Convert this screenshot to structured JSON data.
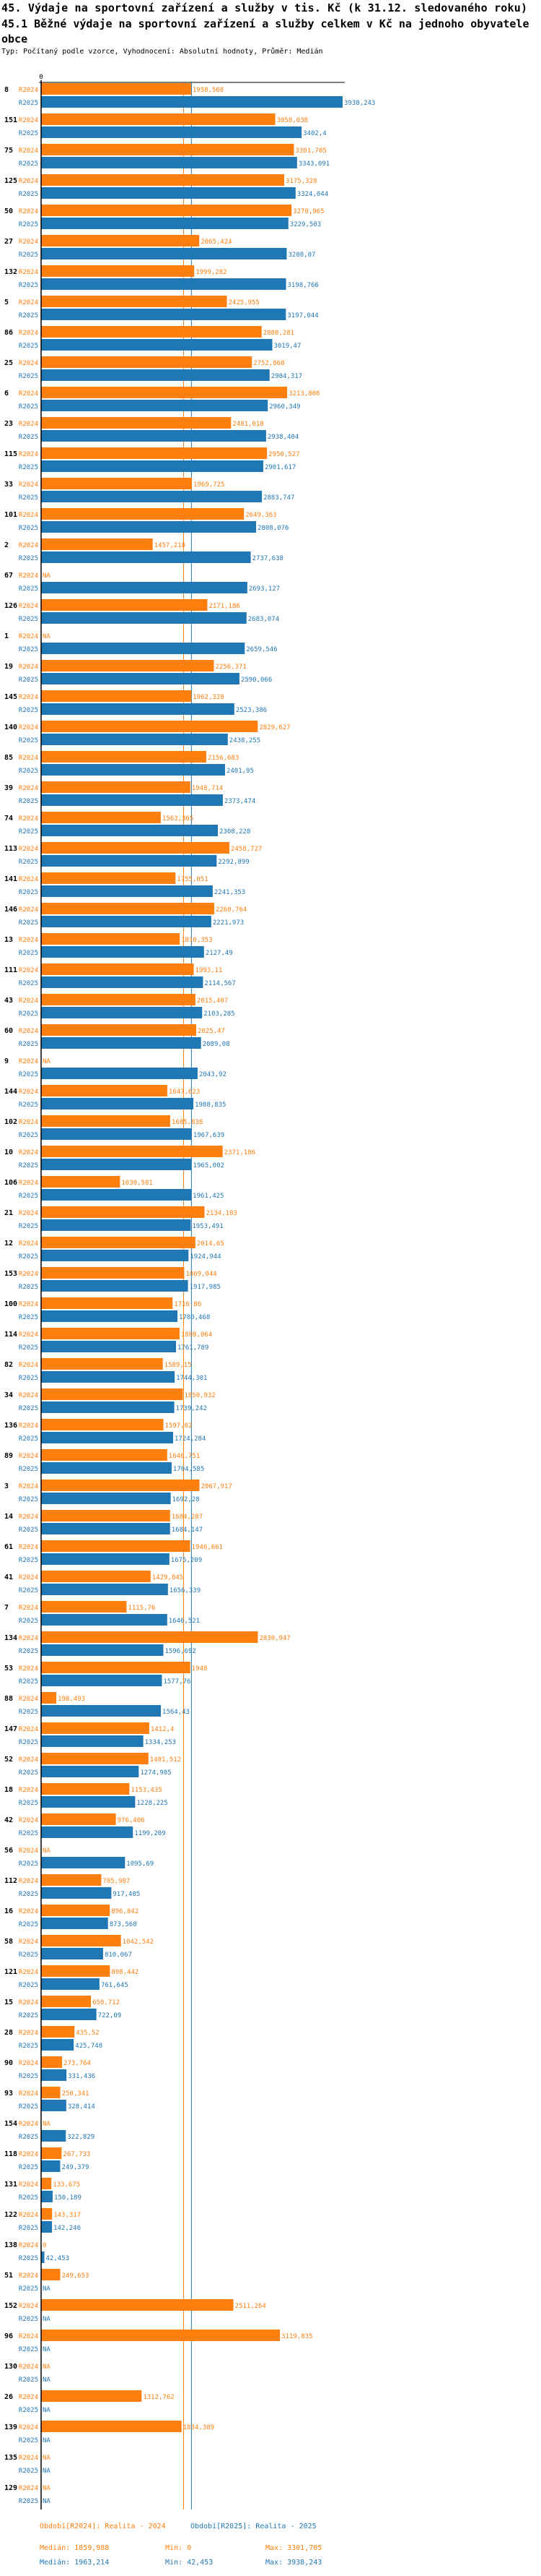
{
  "title": "45. Výdaje na sportovní zařízení a služby v tis. Kč (k 31.12. sledovaného roku)",
  "subtitle": "45.1 Běžné výdaje na sportovní zařízení a služby celkem v Kč na jednoho obyvatele obce",
  "type_line": "Typ: Počítaný podle vzorce, Vyhodnocení: Absolutní hodnoty, Průměr: Medián",
  "colors": {
    "R2024": "#ff7f0e",
    "R2025": "#1f77b4"
  },
  "chart_data": {
    "type": "bar",
    "orientation": "horizontal",
    "title": "45.1 Běžné výdaje na sportovní zařízení a služby celkem v Kč na jednoho obyvatele obce",
    "xlabel": "",
    "ylabel": "",
    "xlim": [
      0,
      3938.243
    ],
    "x_tick_labels": [
      "0"
    ],
    "series_names": [
      "R2024",
      "R2025"
    ],
    "categories": [
      "8",
      "151",
      "75",
      "125",
      "50",
      "27",
      "132",
      "5",
      "86",
      "25",
      "6",
      "23",
      "115",
      "33",
      "101",
      "2",
      "67",
      "126",
      "1",
      "19",
      "145",
      "140",
      "85",
      "39",
      "74",
      "113",
      "141",
      "146",
      "13",
      "111",
      "43",
      "60",
      "9",
      "144",
      "102",
      "10",
      "106",
      "21",
      "12",
      "153",
      "100",
      "114",
      "82",
      "34",
      "136",
      "89",
      "3",
      "14",
      "61",
      "41",
      "7",
      "134",
      "53",
      "88",
      "147",
      "52",
      "18",
      "42",
      "56",
      "112",
      "16",
      "58",
      "121",
      "15",
      "28",
      "90",
      "93",
      "154",
      "118",
      "131",
      "122",
      "138",
      "51",
      "152",
      "96",
      "130",
      "26",
      "139",
      "135",
      "129"
    ],
    "series": [
      {
        "name": "R2024",
        "labels": [
          "1958,568",
          "3058,038",
          "3301,705",
          "3175,328",
          "3270,965",
          "2065,424",
          "1999,282",
          "2425,955",
          "2880,281",
          "2752,868",
          "3213,808",
          "2481,018",
          "2950,527",
          "1969,725",
          "2649,363",
          "1457,218",
          "NA",
          "2171,186",
          "NA",
          "2256,371",
          "1962,328",
          "2829,627",
          "2156,683",
          "1948,714",
          "1563,365",
          "2458,727",
          "1755,051",
          "2260,764",
          "1810,353",
          "1993,11",
          "2015,407",
          "2025,47",
          "NA",
          "1647,623",
          "1685,838",
          "2371,186",
          "1030,581",
          "2134,103",
          "2014,65",
          "1869,044",
          "1716,86",
          "1808,064",
          "1589,15",
          "1850,932",
          "1597,02",
          "1646,751",
          "2067,917",
          "1684,287",
          "1946,661",
          "1429,845",
          "1115,76",
          "2830,947",
          "1948",
          "198,493",
          "1412,4",
          "1401,512",
          "1153,435",
          "976,406",
          "NA",
          "785,987",
          "896,842",
          "1042,542",
          "898,442",
          "650,712",
          "435,52",
          "273,764",
          "250,341",
          "NA",
          "267,733",
          "133,675",
          "143,317",
          "0",
          "249,653",
          "2511,264",
          "3119,835",
          "NA",
          "1312,762",
          "1834,389",
          "NA",
          "NA"
        ]
      },
      {
        "name": "R2025",
        "labels": [
          "3938,243",
          "3402,4",
          "3343,091",
          "3324,044",
          "3229,503",
          "3208,07",
          "3198,766",
          "3197,044",
          "3019,47",
          "2984,317",
          "2960,349",
          "2938,404",
          "2901,617",
          "2883,747",
          "2808,076",
          "2737,638",
          "2693,127",
          "2683,074",
          "2659,546",
          "2590,066",
          "2523,386",
          "2438,255",
          "2401,95",
          "2373,474",
          "2308,228",
          "2292,899",
          "2241,353",
          "2221,973",
          "2127,49",
          "2114,567",
          "2103,285",
          "2089,08",
          "2043,92",
          "1988,835",
          "1967,639",
          "1965,002",
          "1961,425",
          "1953,491",
          "1924,944",
          "1917,985",
          "1780,468",
          "1761,789",
          "1744,301",
          "1739,242",
          "1724,284",
          "1704,585",
          "1692,28",
          "1684,147",
          "1675,209",
          "1656,339",
          "1646,521",
          "1596,692",
          "1577,76",
          "1564,43",
          "1334,253",
          "1274,985",
          "1228,225",
          "1199,209",
          "1095,69",
          "917,405",
          "873,568",
          "810,067",
          "761,645",
          "722,09",
          "425,748",
          "331,436",
          "328,414",
          "322,829",
          "249,379",
          "150,189",
          "142,246",
          "42,453",
          "NA",
          "NA",
          "NA",
          "NA",
          "NA",
          "NA",
          "NA",
          "NA"
        ]
      }
    ],
    "reference_lines": [
      {
        "series": "R2024",
        "kind": "median",
        "value": 1859.988
      },
      {
        "series": "R2025",
        "kind": "median",
        "value": 1963.214
      }
    ],
    "grid": false
  },
  "legend": {
    "r2024_label": "Období[R2024]: Realita - 2024",
    "r2025_label": "Období[R2025]: Realita - 2025",
    "r2024_median": "Medián: 1859,988",
    "r2024_min": "Min: 0",
    "r2024_max": "Max: 3301,705",
    "r2025_median": "Medián: 1963,214",
    "r2025_min": "Min: 42,453",
    "r2025_max": "Max: 3938,243"
  }
}
